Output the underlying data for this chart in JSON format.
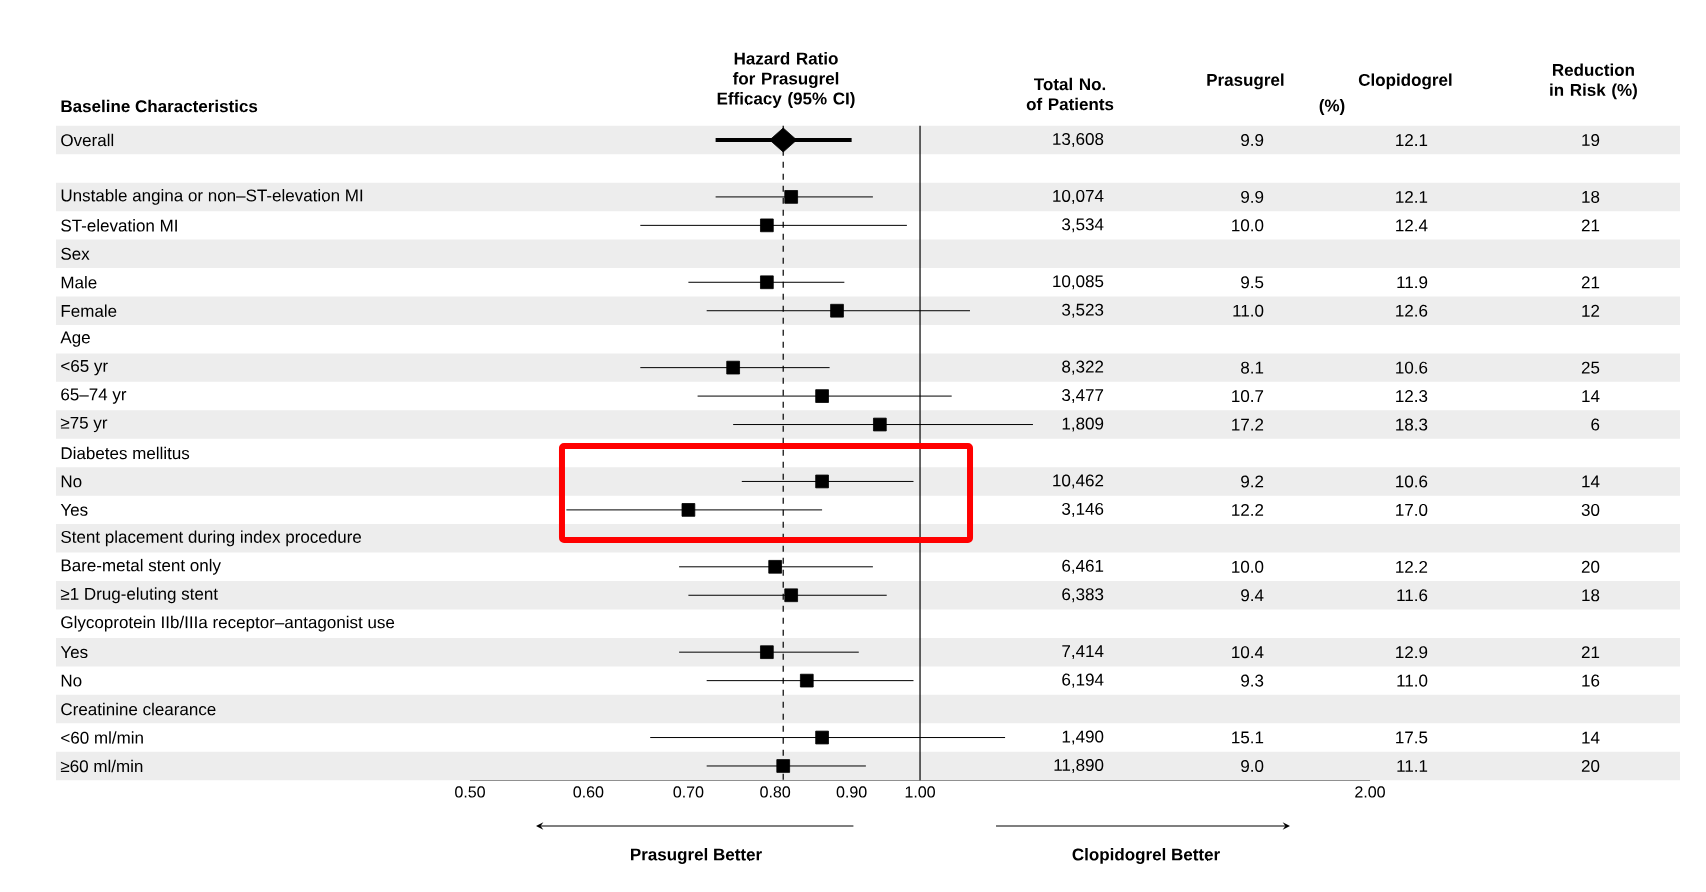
{
  "chart_data": [
    {
      "type": "scatter",
      "orientation": "horizontal",
      "title": "Hazard Ratio for Prasugrel Efficacy (95% CI)",
      "ylabel": "Baseline Characteristics",
      "categories": [
        "Overall",
        null,
        "Unstable angina or non–ST-elevation MI",
        "ST-elevation MI",
        "Sex",
        "Male",
        "Female",
        "Age",
        "<65 yr",
        "65–74 yr",
        "≥75 yr",
        "Diabetes mellitus",
        "No",
        "Yes",
        "Stent placement during index procedure",
        "Bare-metal stent only",
        "≥1 Drug-eluting stent",
        "Glycoprotein IIb/IIIa receptor–antagonist use",
        "Yes",
        "No",
        "Creatinine clearance",
        "<60 ml/min",
        "≥60 ml/min"
      ],
      "series": [
        {
          "marker": "diamond",
          "color": "#000000",
          "values": [
            0.81,
            null,
            null,
            null,
            null,
            null,
            null,
            null,
            null,
            null,
            null,
            null,
            null,
            null,
            null,
            null,
            null,
            null,
            null,
            null,
            null,
            null,
            null
          ],
          "errors": [
            [
              0.73,
              0.9
            ],
            null,
            null,
            null,
            null,
            null,
            null,
            null,
            null,
            null,
            null,
            null,
            null,
            null,
            null,
            null,
            null,
            null,
            null,
            null,
            null,
            null,
            null
          ]
        },
        {
          "marker": "square",
          "color": "#000000",
          "values": [
            null,
            null,
            0.82,
            0.79,
            null,
            0.79,
            0.88,
            null,
            0.75,
            0.86,
            0.94,
            null,
            0.86,
            0.7,
            null,
            0.8,
            0.82,
            null,
            0.79,
            0.84,
            null,
            0.86,
            0.81
          ],
          "errors": [
            null,
            null,
            [
              0.73,
              0.93
            ],
            [
              0.65,
              0.98
            ],
            null,
            [
              0.7,
              0.89
            ],
            [
              0.72,
              1.08
            ],
            null,
            [
              0.65,
              0.87
            ],
            [
              0.71,
              1.05
            ],
            [
              0.75,
              1.19
            ],
            null,
            [
              0.76,
              0.99
            ],
            [
              0.58,
              0.86
            ],
            null,
            [
              0.69,
              0.93
            ],
            [
              0.7,
              0.95
            ],
            null,
            [
              0.69,
              0.91
            ],
            [
              0.72,
              0.99
            ],
            null,
            [
              0.66,
              1.14
            ],
            [
              0.72,
              0.92
            ]
          ]
        }
      ],
      "log": "x",
      "xlim": [
        0.5,
        2.0
      ],
      "xticks": [
        {
          "value": 0.5,
          "label": "0.50"
        },
        {
          "value": 0.6,
          "label": "0.60"
        },
        {
          "value": 0.7,
          "label": "0.70"
        },
        {
          "value": 0.8,
          "label": "0.80"
        },
        {
          "value": 0.9,
          "label": "0.90"
        },
        {
          "value": 1.0,
          "label": "1.00"
        },
        {
          "value": 2.0,
          "label": "2.00"
        }
      ],
      "ref_lines": [
        {
          "axis": "x",
          "value": 1.0,
          "color": "#000000",
          "line_style": "solid"
        },
        {
          "axis": "x",
          "value": 0.81,
          "color": "#000000",
          "line_style": "dashed"
        }
      ],
      "annotations": [
        "Prasugrel Better",
        "Clopidogrel Better"
      ]
    },
    {
      "type": "other",
      "annotations": [
        "Total No. of Patients",
        "Prasugrel",
        "Clopidogrel",
        "(%)",
        "Reduction in Risk (%)",
        "13,608",
        "9.9",
        "12.1",
        "19",
        "10,074",
        "9.9",
        "12.1",
        "18",
        "3,534",
        "10.0",
        "12.4",
        "21",
        "10,085",
        "9.5",
        "11.9",
        "21",
        "3,523",
        "11.0",
        "12.6",
        "12",
        "8,322",
        "8.1",
        "10.6",
        "25",
        "3,477",
        "10.7",
        "12.3",
        "14",
        "1,809",
        "17.2",
        "18.3",
        "6",
        "10,462",
        "9.2",
        "10.6",
        "14",
        "3,146",
        "12.2",
        "17.0",
        "30",
        "6,461",
        "10.0",
        "12.2",
        "20",
        "6,383",
        "9.4",
        "11.6",
        "18",
        "7,414",
        "10.4",
        "12.9",
        "21",
        "6,194",
        "9.3",
        "11.0",
        "16",
        "1,490",
        "15.1",
        "17.5",
        "14",
        "11,890",
        "9.0",
        "11.1",
        "20"
      ]
    }
  ]
}
